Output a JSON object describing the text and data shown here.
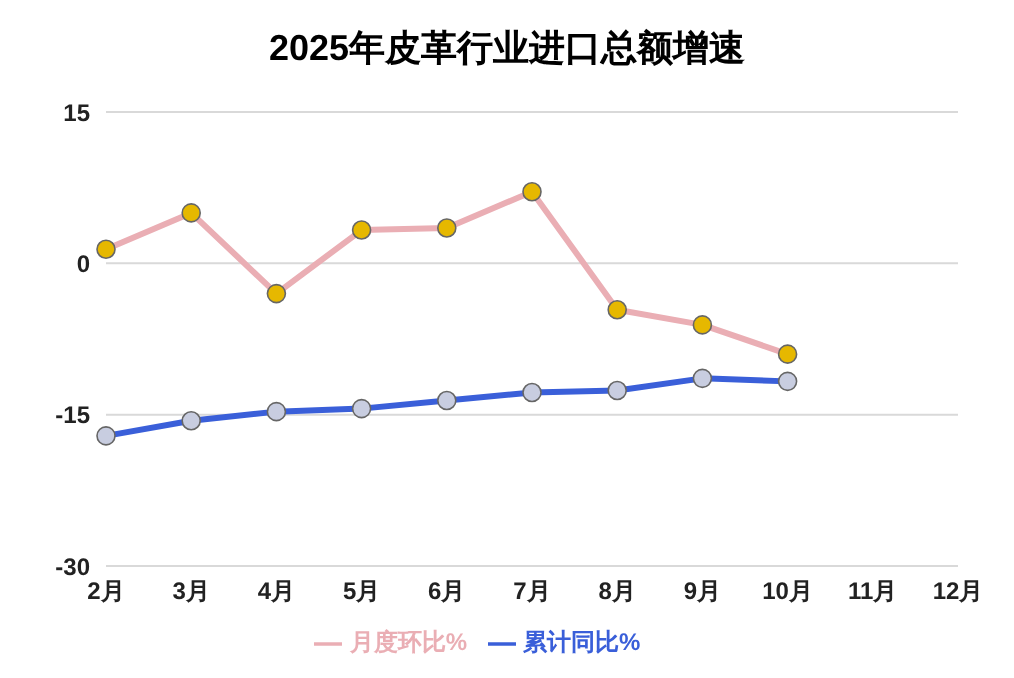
{
  "chart_data": {
    "type": "line",
    "title": "2025年皮革行业进口总额增速",
    "categories": [
      "2月",
      "3月",
      "4月",
      "5月",
      "6月",
      "7月",
      "8月",
      "9月",
      "10月",
      "11月",
      "12月"
    ],
    "series": [
      {
        "name": "累计同比%",
        "color": "#3a5fd9",
        "values": [
          -17.1,
          -15.6,
          -14.7,
          -14.4,
          -13.6,
          -12.8,
          -12.6,
          -11.4,
          -11.7,
          null,
          null
        ]
      },
      {
        "name": "月度环比%",
        "color": "#eaaeb4",
        "values": [
          1.4,
          5.0,
          -3.0,
          3.3,
          3.5,
          7.1,
          -4.6,
          -6.1,
          -9.0,
          null,
          null
        ]
      }
    ],
    "ylim": [
      -30,
      15
    ],
    "yticks": [
      -30,
      -15,
      0,
      15
    ],
    "grid": "y",
    "legend": "bottom",
    "marker": "circle",
    "line_style": "solid"
  }
}
